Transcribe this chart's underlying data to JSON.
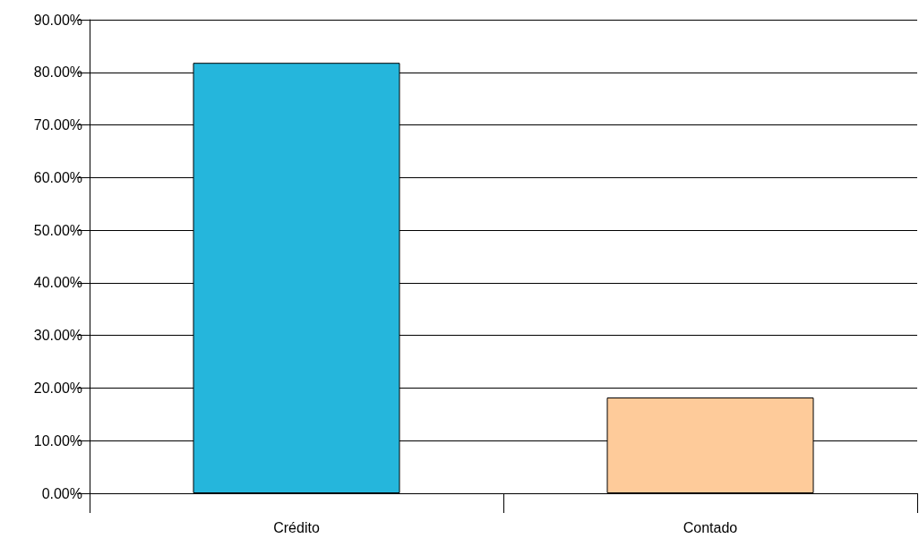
{
  "chart_data": {
    "type": "bar",
    "categories": [
      "Crédito",
      "Contado"
    ],
    "values": [
      81.8,
      18.2
    ],
    "colors": [
      "#25b6dc",
      "#fecb9a"
    ],
    "ylim": [
      0,
      90
    ],
    "yticks": [
      {
        "value": 0,
        "label": "0.00%"
      },
      {
        "value": 10,
        "label": "10.00%"
      },
      {
        "value": 20,
        "label": "20.00%"
      },
      {
        "value": 30,
        "label": "30.00%"
      },
      {
        "value": 40,
        "label": "40.00%"
      },
      {
        "value": 50,
        "label": "50.00%"
      },
      {
        "value": 60,
        "label": "60.00%"
      },
      {
        "value": 70,
        "label": "70.00%"
      },
      {
        "value": 80,
        "label": "80.00%"
      },
      {
        "value": 90,
        "label": "90.00%"
      }
    ],
    "grid": "y"
  }
}
